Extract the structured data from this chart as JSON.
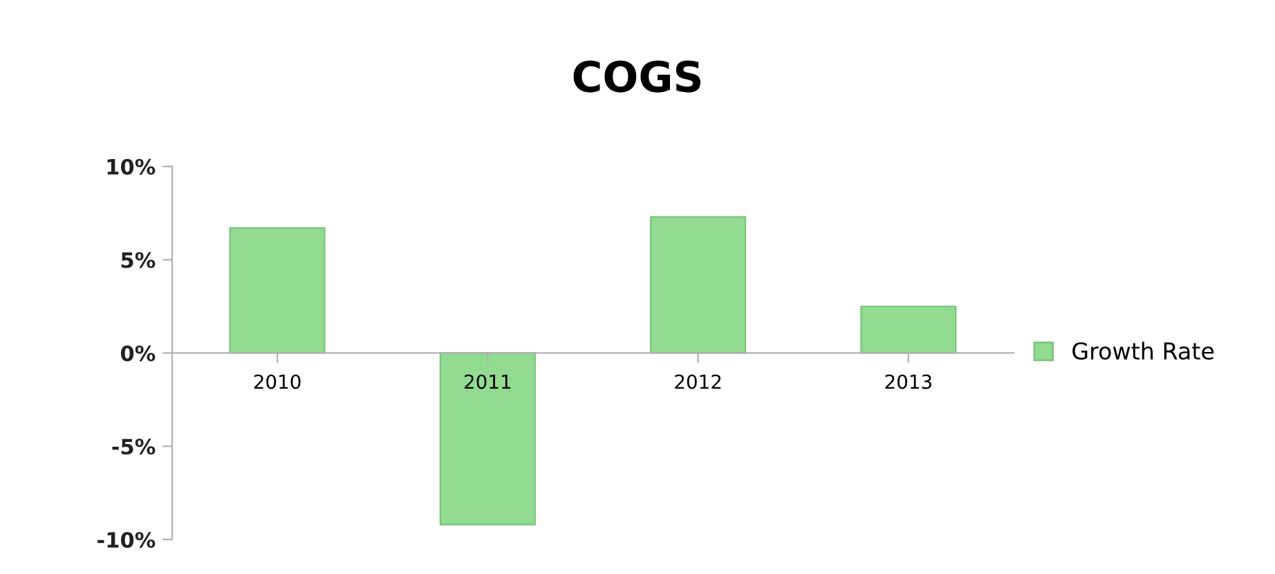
{
  "chart_data": {
    "type": "bar",
    "title": "COGS",
    "categories": [
      "2010",
      "2011",
      "2012",
      "2013"
    ],
    "series": [
      {
        "name": "Growth Rate",
        "color": "#92dc92",
        "values": [
          6.7,
          -9.2,
          7.3,
          2.5
        ]
      }
    ],
    "ylim": [
      -10,
      10
    ],
    "yticks": [
      {
        "value": -10,
        "label": "-10%"
      },
      {
        "value": -5,
        "label": "-5%"
      },
      {
        "value": 0,
        "label": "0%"
      },
      {
        "value": 5,
        "label": "5%"
      },
      {
        "value": 10,
        "label": "10%"
      }
    ],
    "grid": false,
    "legend": "right"
  }
}
